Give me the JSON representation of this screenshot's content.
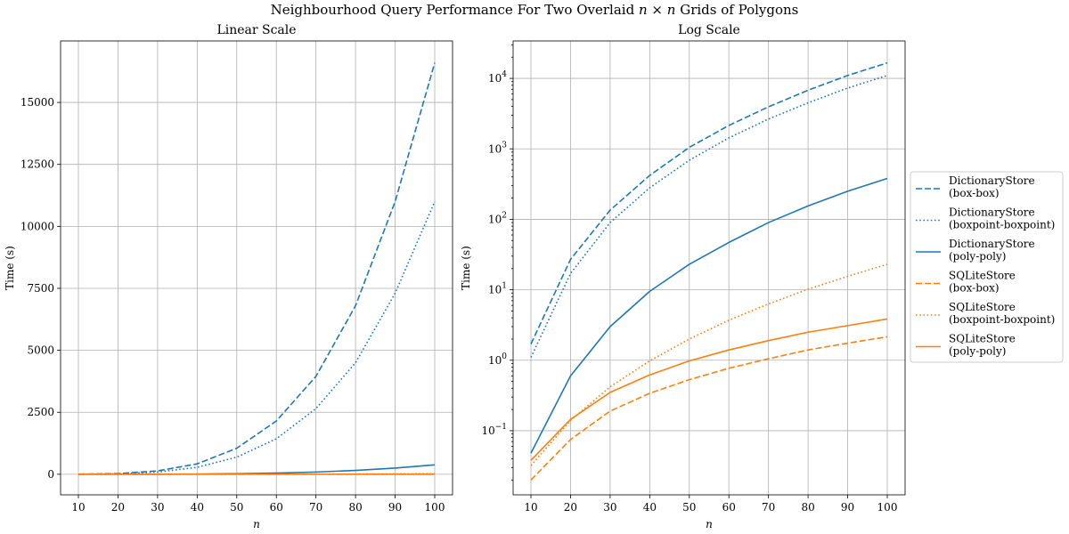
{
  "figure": {
    "suptitle": "Neighbourhood Query Performance For Two Overlaid n × n Grids of Polygons"
  },
  "colors": {
    "dictionary": "#1f77b4",
    "sqlite": "#ff7f0e"
  },
  "legend": {
    "placement": "outside-right",
    "entries": [
      {
        "line1": "DictionaryStore",
        "line2": "(box-box)",
        "color": "#1f77b4",
        "style": "dashed"
      },
      {
        "line1": "DictionaryStore",
        "line2": "(boxpoint-boxpoint)",
        "color": "#1f77b4",
        "style": "dotted"
      },
      {
        "line1": "DictionaryStore",
        "line2": "(poly-poly)",
        "color": "#1f77b4",
        "style": "solid"
      },
      {
        "line1": "SQLiteStore",
        "line2": "(box-box)",
        "color": "#ff7f0e",
        "style": "dashed"
      },
      {
        "line1": "SQLiteStore",
        "line2": "(boxpoint-boxpoint)",
        "color": "#ff7f0e",
        "style": "dotted"
      },
      {
        "line1": "SQLiteStore",
        "line2": "(poly-poly)",
        "color": "#ff7f0e",
        "style": "solid"
      }
    ]
  },
  "chart_data": [
    {
      "type": "line",
      "title": "Linear Scale",
      "xlabel": "n",
      "ylabel": "Time (s)",
      "yscale": "linear",
      "grid": true,
      "xlim": [
        5.5,
        104.5
      ],
      "ylim": [
        -830,
        17480
      ],
      "xticks": [
        10,
        20,
        30,
        40,
        50,
        60,
        70,
        80,
        90,
        100
      ],
      "yticks": [
        0,
        2500,
        5000,
        7500,
        10000,
        12500,
        15000
      ],
      "x": [
        10,
        20,
        30,
        40,
        50,
        60,
        70,
        80,
        90,
        100
      ],
      "series": [
        {
          "name": "DictionaryStore (box-box)",
          "color": "#1f77b4",
          "style": "dashed",
          "values": [
            1.7,
            27,
            135,
            420,
            1050,
            2150,
            3950,
            6800,
            11000,
            16600
          ]
        },
        {
          "name": "DictionaryStore (boxpoint-boxpoint)",
          "color": "#1f77b4",
          "style": "dotted",
          "values": [
            1.1,
            17,
            90,
            280,
            690,
            1430,
            2650,
            4500,
            7300,
            11000
          ]
        },
        {
          "name": "DictionaryStore (poly-poly)",
          "color": "#1f77b4",
          "style": "solid",
          "values": [
            0.048,
            0.6,
            3.0,
            9.5,
            23,
            47,
            90,
            155,
            250,
            380
          ]
        },
        {
          "name": "SQLiteStore (box-box)",
          "color": "#ff7f0e",
          "style": "dashed",
          "values": [
            0.02,
            0.075,
            0.19,
            0.34,
            0.53,
            0.77,
            1.05,
            1.4,
            1.75,
            2.15
          ]
        },
        {
          "name": "SQLiteStore (boxpoint-boxpoint)",
          "color": "#ff7f0e",
          "style": "dotted",
          "values": [
            0.032,
            0.14,
            0.42,
            0.98,
            2.0,
            3.7,
            6.3,
            10.2,
            15.5,
            23
          ]
        },
        {
          "name": "SQLiteStore (poly-poly)",
          "color": "#ff7f0e",
          "style": "solid",
          "values": [
            0.038,
            0.145,
            0.35,
            0.62,
            0.98,
            1.4,
            1.9,
            2.5,
            3.1,
            3.85
          ]
        }
      ]
    },
    {
      "type": "line",
      "title": "Log Scale",
      "xlabel": "n",
      "ylabel": "Time (s)",
      "yscale": "log",
      "grid": true,
      "xlim": [
        5.5,
        104.5
      ],
      "ylim": [
        0.0123,
        34000
      ],
      "xticks": [
        10,
        20,
        30,
        40,
        50,
        60,
        70,
        80,
        90,
        100
      ],
      "yticks": [
        0.1,
        1,
        10,
        100,
        1000,
        10000
      ],
      "ytick_labels": [
        {
          "base": "10",
          "exp": "−1"
        },
        {
          "base": "10",
          "exp": "0"
        },
        {
          "base": "10",
          "exp": "1"
        },
        {
          "base": "10",
          "exp": "2"
        },
        {
          "base": "10",
          "exp": "3"
        },
        {
          "base": "10",
          "exp": "4"
        }
      ],
      "x": [
        10,
        20,
        30,
        40,
        50,
        60,
        70,
        80,
        90,
        100
      ],
      "series": [
        {
          "name": "DictionaryStore (box-box)",
          "color": "#1f77b4",
          "style": "dashed",
          "values": [
            1.7,
            27,
            135,
            420,
            1050,
            2150,
            3950,
            6800,
            11000,
            16600
          ]
        },
        {
          "name": "DictionaryStore (boxpoint-boxpoint)",
          "color": "#1f77b4",
          "style": "dotted",
          "values": [
            1.1,
            17,
            90,
            280,
            690,
            1430,
            2650,
            4500,
            7300,
            11000
          ]
        },
        {
          "name": "DictionaryStore (poly-poly)",
          "color": "#1f77b4",
          "style": "solid",
          "values": [
            0.048,
            0.6,
            3.0,
            9.5,
            23,
            47,
            90,
            155,
            250,
            380
          ]
        },
        {
          "name": "SQLiteStore (box-box)",
          "color": "#ff7f0e",
          "style": "dashed",
          "values": [
            0.02,
            0.075,
            0.19,
            0.34,
            0.53,
            0.77,
            1.05,
            1.4,
            1.75,
            2.15
          ]
        },
        {
          "name": "SQLiteStore (boxpoint-boxpoint)",
          "color": "#ff7f0e",
          "style": "dotted",
          "values": [
            0.032,
            0.14,
            0.42,
            0.98,
            2.0,
            3.7,
            6.3,
            10.2,
            15.5,
            23
          ]
        },
        {
          "name": "SQLiteStore (poly-poly)",
          "color": "#ff7f0e",
          "style": "solid",
          "values": [
            0.038,
            0.145,
            0.35,
            0.62,
            0.98,
            1.4,
            1.9,
            2.5,
            3.1,
            3.85
          ]
        }
      ]
    }
  ]
}
